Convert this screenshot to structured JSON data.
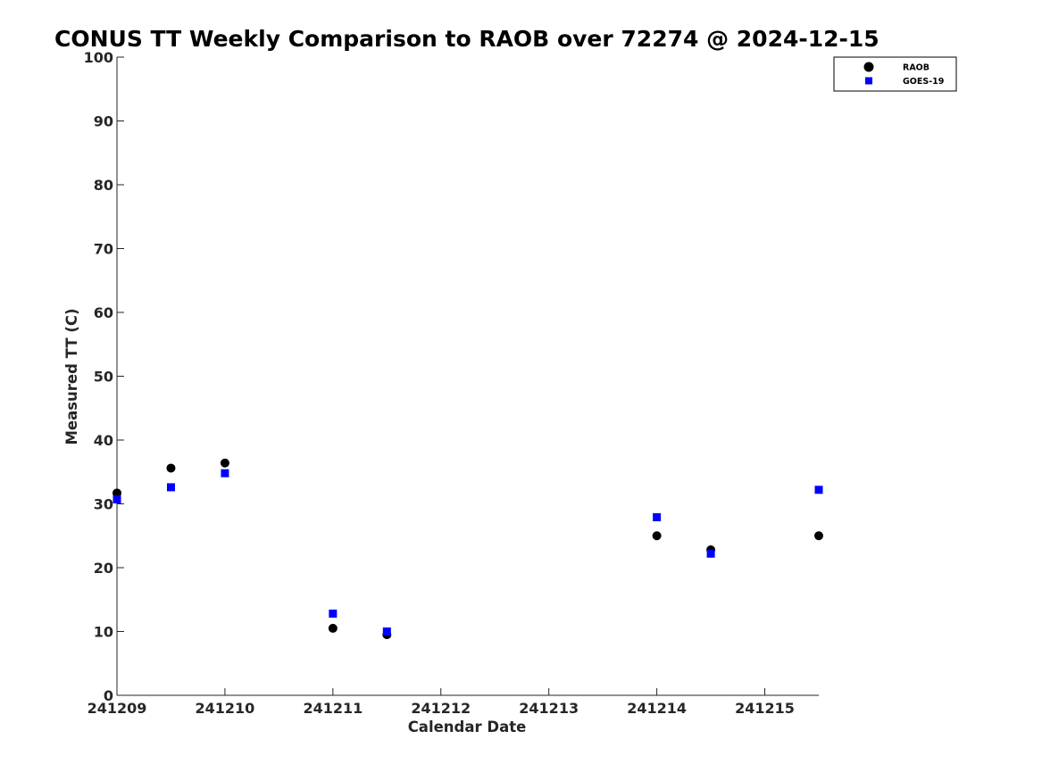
{
  "chart_data": {
    "type": "scatter",
    "title": "CONUS TT Weekly Comparison to RAOB over 72274 @ 2024-12-15",
    "xlabel": "Calendar Date",
    "ylabel": "Measured TT (C)",
    "xlim": [
      "2024-12-09T00:00",
      "2024-12-15T12:00"
    ],
    "ylim": [
      0,
      100
    ],
    "x_ticks": [
      "2024-12-09",
      "2024-12-10",
      "2024-12-11",
      "2024-12-12",
      "2024-12-13",
      "2024-12-14",
      "2024-12-15"
    ],
    "x_tick_labels": [
      "241209",
      "241210",
      "241211",
      "241212",
      "241213",
      "241214",
      "241215"
    ],
    "y_ticks": [
      0,
      10,
      20,
      30,
      40,
      50,
      60,
      70,
      80,
      90,
      100
    ],
    "grid": false,
    "legend_position": "top-right",
    "series": [
      {
        "name": "RAOB",
        "marker": "circle",
        "color": "#000000",
        "x": [
          "2024-12-09T00:00",
          "2024-12-09T12:00",
          "2024-12-10T00:00",
          "2024-12-11T00:00",
          "2024-12-11T12:00",
          "2024-12-14T00:00",
          "2024-12-14T12:00",
          "2024-12-15T12:00"
        ],
        "y": [
          31.7,
          35.6,
          36.4,
          10.5,
          9.5,
          25.0,
          22.8,
          25.0
        ]
      },
      {
        "name": "GOES-19",
        "marker": "square",
        "color": "#0000ff",
        "x": [
          "2024-12-09T00:00",
          "2024-12-09T12:00",
          "2024-12-10T00:00",
          "2024-12-11T00:00",
          "2024-12-11T12:00",
          "2024-12-14T00:00",
          "2024-12-14T12:00",
          "2024-12-15T12:00"
        ],
        "y": [
          30.7,
          32.6,
          34.8,
          12.8,
          10.0,
          27.9,
          22.2,
          32.2
        ]
      }
    ]
  }
}
